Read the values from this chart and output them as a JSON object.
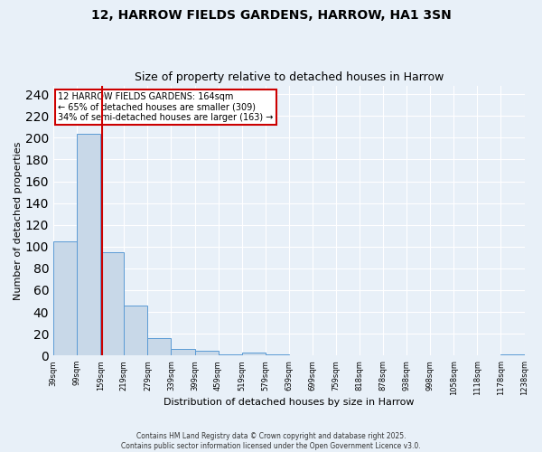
{
  "title_line1": "12, HARROW FIELDS GARDENS, HARROW, HA1 3SN",
  "title_line2": "Size of property relative to detached houses in Harrow",
  "xlabel": "Distribution of detached houses by size in Harrow",
  "ylabel": "Number of detached properties",
  "bar_values": [
    105,
    204,
    95,
    46,
    16,
    6,
    4,
    1,
    3,
    1,
    0,
    0,
    0,
    0,
    0,
    0,
    0,
    0,
    0,
    1
  ],
  "bin_labels": [
    "39sqm",
    "99sqm",
    "159sqm",
    "219sqm",
    "279sqm",
    "339sqm",
    "399sqm",
    "459sqm",
    "519sqm",
    "579sqm",
    "639sqm",
    "699sqm",
    "759sqm",
    "818sqm",
    "878sqm",
    "938sqm",
    "998sqm",
    "1058sqm",
    "1118sqm",
    "1178sqm",
    "1238sqm"
  ],
  "bar_color": "#c8d8e8",
  "bar_edge_color": "#5b9bd5",
  "vline_color": "#cc0000",
  "vline_x": 2.083,
  "annotation_text": "12 HARROW FIELDS GARDENS: 164sqm\n← 65% of detached houses are smaller (309)\n34% of semi-detached houses are larger (163) →",
  "annotation_box_color": "#ffffff",
  "annotation_box_edge": "#cc0000",
  "ylim": [
    0,
    248
  ],
  "yticks": [
    0,
    20,
    40,
    60,
    80,
    100,
    120,
    140,
    160,
    180,
    200,
    220,
    240
  ],
  "background_color": "#e8f0f8",
  "grid_color": "#ffffff",
  "footer_line1": "Contains HM Land Registry data © Crown copyright and database right 2025.",
  "footer_line2": "Contains public sector information licensed under the Open Government Licence v3.0."
}
